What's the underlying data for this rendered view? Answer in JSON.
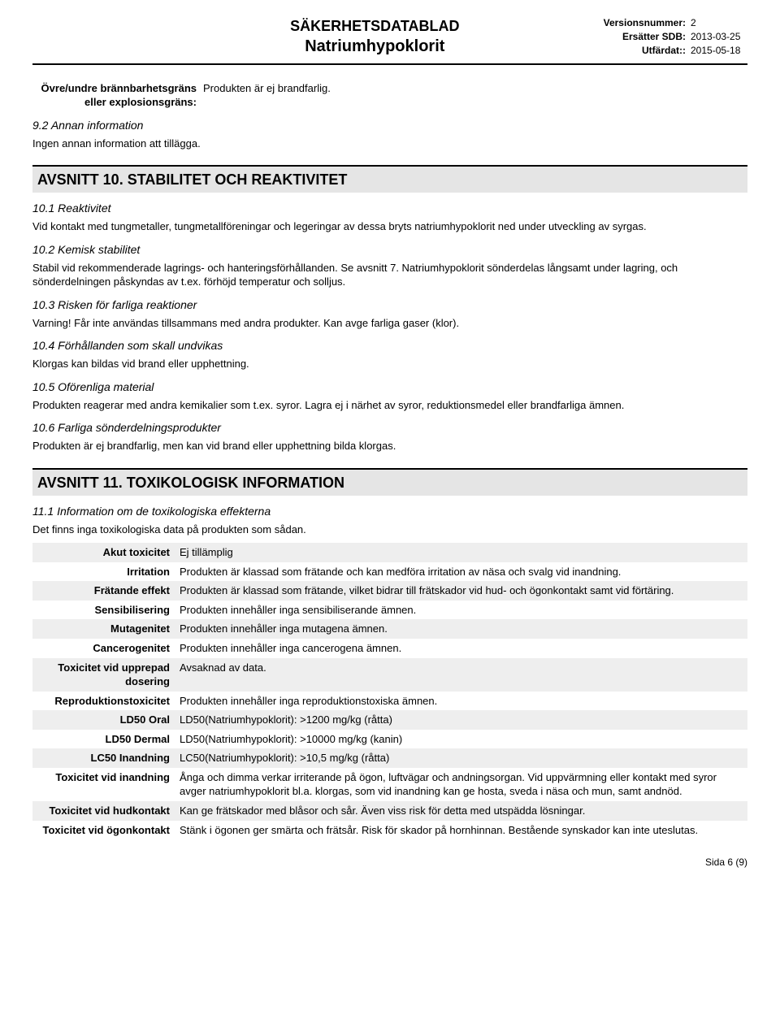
{
  "header": {
    "title1": "SÄKERHETSDATABLAD",
    "title2": "Natriumhypoklorit",
    "meta": [
      {
        "label": "Versionsnummer:",
        "value": "2"
      },
      {
        "label": "Ersätter SDB:",
        "value": "2013-03-25"
      },
      {
        "label": "Utfärdat::",
        "value": "2015-05-18"
      }
    ]
  },
  "preblock": {
    "kv_label": "Övre/undre brännbarhetsgräns eller explosionsgräns:",
    "kv_value": "Produkten är ej brandfarlig.",
    "sub": "9.2 Annan information",
    "text": "Ingen annan information att tillägga."
  },
  "section10": {
    "title": "AVSNITT 10. STABILITET OCH REAKTIVITET",
    "subs": [
      {
        "h": "10.1 Reaktivitet",
        "p": "Vid kontakt med tungmetaller, tungmetallföreningar och legeringar av dessa bryts natriumhypoklorit ned under utveckling av syrgas."
      },
      {
        "h": "10.2 Kemisk stabilitet",
        "p": "Stabil vid rekommenderade lagrings- och hanteringsförhållanden. Se avsnitt 7. Natriumhypoklorit sönderdelas långsamt under lagring, och sönderdelningen påskyndas av t.ex. förhöjd temperatur och solljus."
      },
      {
        "h": "10.3 Risken för farliga reaktioner",
        "p": "Varning! Får inte användas tillsammans med andra produkter. Kan avge farliga gaser (klor)."
      },
      {
        "h": "10.4 Förhållanden som skall undvikas",
        "p": "Klorgas kan bildas vid brand eller upphettning."
      },
      {
        "h": "10.5 Oförenliga material",
        "p": "Produkten reagerar med andra kemikalier som t.ex. syror. Lagra ej i närhet av syror, reduktionsmedel eller brandfarliga ämnen."
      },
      {
        "h": "10.6 Farliga sönderdelningsprodukter",
        "p": "Produkten är ej brandfarlig, men kan vid brand eller upphettning bilda klorgas."
      }
    ]
  },
  "section11": {
    "title": "AVSNITT 11. TOXIKOLOGISK INFORMATION",
    "sub": "11.1 Information om de toxikologiska effekterna",
    "intro": "Det finns inga toxikologiska data på produkten som sådan.",
    "rows": [
      {
        "shade": true,
        "label": "Akut toxicitet",
        "value": "Ej tillämplig"
      },
      {
        "shade": false,
        "label": "Irritation",
        "value": "Produkten är klassad som frätande och kan medföra irritation av näsa och svalg vid inandning."
      },
      {
        "shade": true,
        "label": "Frätande effekt",
        "value": "Produkten är klassad som frätande, vilket bidrar till frätskador vid hud- och ögonkontakt samt vid förtäring."
      },
      {
        "shade": false,
        "label": "Sensibilisering",
        "value": "Produkten innehåller inga sensibiliserande ämnen."
      },
      {
        "shade": true,
        "label": "Mutagenitet",
        "value": "Produkten innehåller inga mutagena ämnen."
      },
      {
        "shade": false,
        "label": "Cancerogenitet",
        "value": "Produkten innehåller inga cancerogena ämnen."
      },
      {
        "shade": true,
        "label": "Toxicitet vid upprepad dosering",
        "value": "Avsaknad av data."
      },
      {
        "shade": false,
        "label": "Reproduktionstoxicitet",
        "value": "Produkten innehåller inga reproduktionstoxiska ämnen."
      },
      {
        "shade": true,
        "label": "LD50 Oral",
        "value": "LD50(Natriumhypoklorit): >1200 mg/kg (råtta)"
      },
      {
        "shade": false,
        "label": "LD50 Dermal",
        "value": "LD50(Natriumhypoklorit): >10000 mg/kg (kanin)"
      },
      {
        "shade": true,
        "label": "LC50 Inandning",
        "value": "LC50(Natriumhypoklorit): >10,5 mg/kg (råtta)"
      },
      {
        "shade": false,
        "label": "Toxicitet vid inandning",
        "value": "Ånga och dimma verkar irriterande på ögon, luftvägar och andningsorgan. Vid uppvärmning eller kontakt med syror avger natriumhypoklorit bl.a. klorgas, som vid inandning kan ge hosta, sveda i näsa och mun, samt andnöd."
      },
      {
        "shade": true,
        "label": "Toxicitet vid hudkontakt",
        "value": "Kan ge frätskador med blåsor och sår. Även viss risk för detta med utspädda lösningar."
      },
      {
        "shade": false,
        "label": "Toxicitet vid ögonkontakt",
        "value": "Stänk i ögonen ger smärta och frätsår. Risk för skador på hornhinnan. Bestående synskador kan inte uteslutas."
      }
    ]
  },
  "pageFoot": "Sida 6 (9)"
}
